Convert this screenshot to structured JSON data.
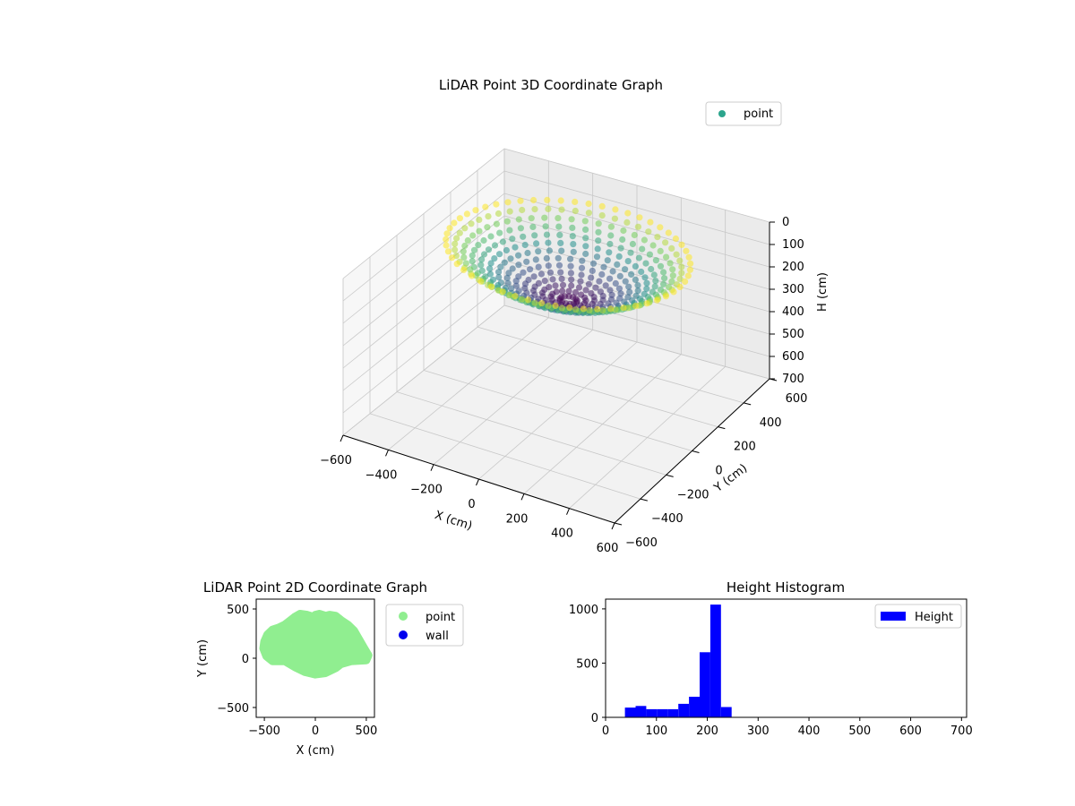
{
  "chart_data": [
    {
      "type": "scatter3d",
      "title": "LiDAR Point 3D Coordinate Graph",
      "xlabel": "X (cm)",
      "ylabel": "Y (cm)",
      "zlabel": "H (cm)",
      "xlim": [
        -600,
        600
      ],
      "ylim": [
        -600,
        600
      ],
      "zlim": [
        700,
        0
      ],
      "z_inverted": true,
      "xticks": [
        -600,
        -400,
        -200,
        0,
        200,
        400,
        600
      ],
      "yticks": [
        -600,
        -400,
        -200,
        0,
        200,
        400,
        600
      ],
      "zticks": [
        0,
        100,
        200,
        300,
        400,
        500,
        600,
        700
      ],
      "legend": {
        "entries": [
          {
            "name": "point",
            "color": "#2ca58d"
          }
        ],
        "position": "top-right"
      },
      "colormap": "viridis",
      "grid": true,
      "cloud": {
        "center_x": 0,
        "center_y": 0,
        "h_min": 40,
        "h_max": 250,
        "x_extent": [
          -500,
          500
        ],
        "y_extent": [
          -170,
          450
        ]
      }
    },
    {
      "type": "scatter",
      "title": "LiDAR Point 2D Coordinate Graph",
      "xlabel": "X (cm)",
      "ylabel": "Y (cm)",
      "xlim": [
        -580,
        580
      ],
      "ylim": [
        -600,
        600
      ],
      "xticks": [
        -500,
        0,
        500
      ],
      "yticks": [
        -500,
        0,
        500
      ],
      "legend": {
        "entries": [
          {
            "name": "point",
            "color": "#90ee90"
          },
          {
            "name": "wall",
            "color": "#0000ee"
          }
        ],
        "position": "outside-right"
      },
      "outline": [
        [
          -500,
          170
        ],
        [
          -470,
          240
        ],
        [
          -420,
          290
        ],
        [
          -360,
          310
        ],
        [
          -300,
          340
        ],
        [
          -250,
          380
        ],
        [
          -200,
          420
        ],
        [
          -150,
          450
        ],
        [
          -80,
          440
        ],
        [
          -20,
          420
        ],
        [
          0,
          440
        ],
        [
          40,
          450
        ],
        [
          100,
          430
        ],
        [
          140,
          440
        ],
        [
          200,
          430
        ],
        [
          260,
          380
        ],
        [
          320,
          340
        ],
        [
          380,
          280
        ],
        [
          430,
          190
        ],
        [
          480,
          100
        ],
        [
          520,
          30
        ],
        [
          500,
          -20
        ],
        [
          350,
          -30
        ],
        [
          250,
          -60
        ],
        [
          200,
          -100
        ],
        [
          100,
          -150
        ],
        [
          0,
          -165
        ],
        [
          -100,
          -140
        ],
        [
          -200,
          -90
        ],
        [
          -300,
          -30
        ],
        [
          -420,
          -30
        ],
        [
          -480,
          20
        ],
        [
          -510,
          100
        ]
      ]
    },
    {
      "type": "bar",
      "title": "Height Histogram",
      "xlabel": "",
      "ylabel": "",
      "xlim": [
        0,
        710
      ],
      "ylim": [
        0,
        1090
      ],
      "xticks": [
        0,
        100,
        200,
        300,
        400,
        500,
        600,
        700
      ],
      "yticks": [
        0,
        500,
        1000
      ],
      "series": [
        {
          "name": "Height",
          "color": "#0000ff",
          "bins": [
            {
              "x0": 38,
              "x1": 59,
              "value": 90
            },
            {
              "x0": 59,
              "x1": 80,
              "value": 105
            },
            {
              "x0": 80,
              "x1": 101,
              "value": 75
            },
            {
              "x0": 101,
              "x1": 122,
              "value": 75
            },
            {
              "x0": 122,
              "x1": 143,
              "value": 75
            },
            {
              "x0": 143,
              "x1": 164,
              "value": 125
            },
            {
              "x0": 164,
              "x1": 185,
              "value": 190
            },
            {
              "x0": 185,
              "x1": 206,
              "value": 600
            },
            {
              "x0": 206,
              "x1": 227,
              "value": 1040
            },
            {
              "x0": 227,
              "x1": 248,
              "value": 95
            }
          ]
        }
      ],
      "legend": {
        "position": "top-right"
      }
    }
  ]
}
